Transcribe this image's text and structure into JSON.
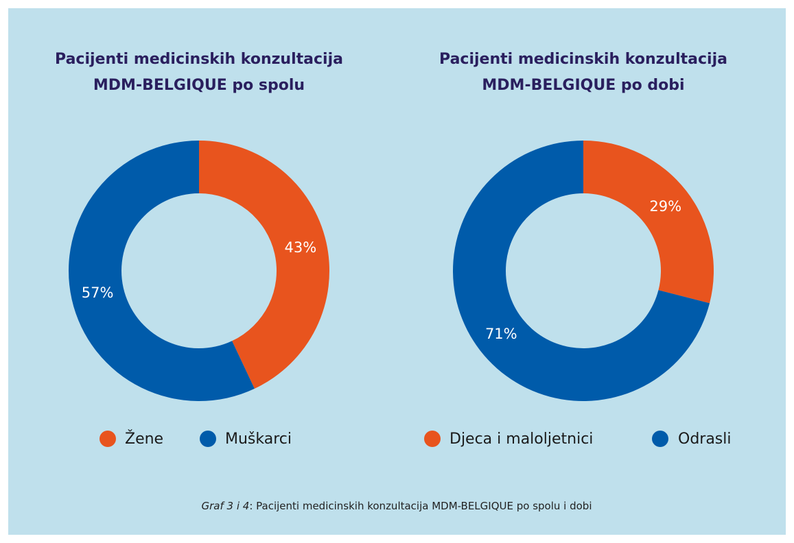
{
  "chart_data": [
    {
      "type": "pie",
      "title": [
        "Pacijenti medicinskih konzultacija",
        "MDM-BELGIQUE po spolu"
      ],
      "categories": [
        "Žene",
        "Muškarci"
      ],
      "values": [
        43,
        57
      ],
      "value_labels": [
        "43%",
        "57%"
      ],
      "colors": [
        "#e8541e",
        "#005baa"
      ],
      "donut": true
    },
    {
      "type": "pie",
      "title": [
        "Pacijenti medicinskih konzultacija",
        "MDM-BELGIQUE po dobi"
      ],
      "categories": [
        "Djeca i maloljetnici",
        "Odrasli"
      ],
      "values": [
        29,
        71
      ],
      "value_labels": [
        "29%",
        "71%"
      ],
      "colors": [
        "#e8541e",
        "#005baa"
      ],
      "donut": true
    }
  ],
  "caption": {
    "label": "Graf 3 i 4",
    "text": ": Pacijenti medicinskih konzultacija MDM-BELGIQUE po spolu i dobi"
  }
}
